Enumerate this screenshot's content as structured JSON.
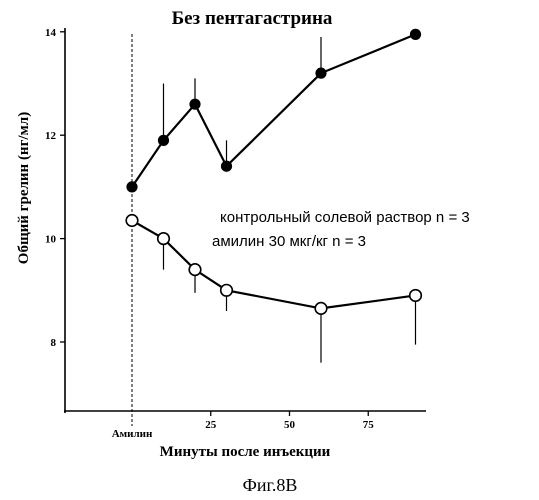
{
  "chart_data": {
    "type": "line",
    "title": "Без пентагастрина",
    "xlabel": "Минуты после инъекции",
    "ylabel": "Общий грелин (нг/мл)",
    "xlim": [
      0,
      95
    ],
    "ylim": [
      6.5,
      14.2
    ],
    "grid": false,
    "x_ticks": [
      25,
      50,
      75
    ],
    "x_tick_labels": [
      "25",
      "50",
      "75"
    ],
    "y_ticks": [
      8,
      10,
      12,
      14
    ],
    "y_tick_labels": [
      "8",
      "10",
      "12",
      "14"
    ],
    "x_start_label": "Амилин",
    "legend_position": "right",
    "series": [
      {
        "name": "контрольный солевой раствор n = 3",
        "marker": "filled-circle",
        "x": [
          0,
          10,
          20,
          30,
          60,
          90
        ],
        "y": [
          11.0,
          11.9,
          12.6,
          11.4,
          13.2,
          13.95
        ],
        "err": [
          0,
          1.1,
          0.5,
          0.5,
          0.7,
          0
        ]
      },
      {
        "name": "амилин 30 мкг/кг n = 3",
        "marker": "open-circle",
        "x": [
          0,
          10,
          20,
          30,
          60,
          90
        ],
        "y": [
          10.35,
          10.0,
          9.4,
          9.0,
          8.65,
          8.9
        ],
        "err": [
          0,
          0.6,
          0.45,
          0.4,
          1.05,
          0.95
        ]
      }
    ]
  },
  "caption": "Фиг.8В"
}
